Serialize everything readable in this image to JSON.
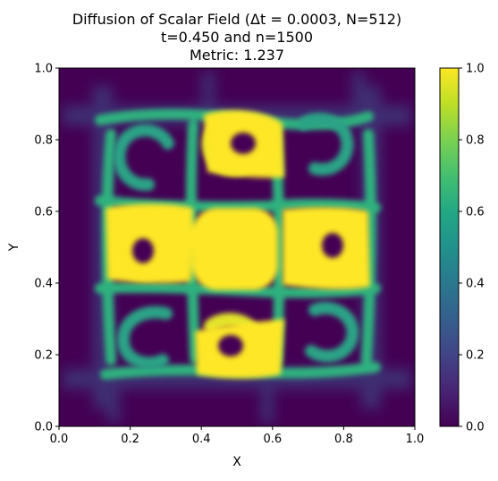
{
  "chart_data": {
    "type": "heatmap",
    "title": "Diffusion of Scalar Field (Δt = 0.0003, N=512)",
    "title_lines": [
      "Diffusion of Scalar Field (Δt = 0.0003, N=512)",
      "t=0.450 and n=1500",
      "Metric: 1.237"
    ],
    "xlabel": "X",
    "ylabel": "Y",
    "xlim": [
      0.0,
      1.0
    ],
    "ylim": [
      0.0,
      1.0
    ],
    "x_ticks": [
      0.0,
      0.2,
      0.4,
      0.6,
      0.8,
      1.0
    ],
    "y_ticks": [
      0.0,
      0.2,
      0.4,
      0.6,
      0.8,
      1.0
    ],
    "x_tick_labels": [
      "0.0",
      "0.2",
      "0.4",
      "0.6",
      "0.8",
      "1.0"
    ],
    "y_tick_labels": [
      "0.0",
      "0.2",
      "0.4",
      "0.6",
      "0.8",
      "1.0"
    ],
    "colormap": "viridis",
    "colorbar": {
      "range": [
        0.0,
        1.0
      ],
      "ticks": [
        0.0,
        0.2,
        0.4,
        0.6,
        0.8,
        1.0
      ],
      "tick_labels": [
        "0.0",
        "0.2",
        "0.4",
        "0.6",
        "0.8",
        "1.0"
      ]
    },
    "colors": {
      "low": "#440154",
      "mid": "#21918c",
      "high": "#fde725"
    },
    "features": [
      {
        "kind": "core",
        "x": 0.5,
        "y": 0.5,
        "value": 1.0
      },
      {
        "kind": "swirl",
        "x": 0.425,
        "y": 0.78,
        "value": 1.0
      },
      {
        "kind": "swirl",
        "x": 0.57,
        "y": 0.21,
        "value": 1.0
      },
      {
        "kind": "swirl",
        "x": 0.21,
        "y": 0.45,
        "value": 1.0
      },
      {
        "kind": "swirl",
        "x": 0.79,
        "y": 0.53,
        "value": 1.0
      },
      {
        "kind": "swirl",
        "x": 0.21,
        "y": 0.79,
        "value": 0.55
      },
      {
        "kind": "swirl",
        "x": 0.79,
        "y": 0.79,
        "value": 0.55
      },
      {
        "kind": "swirl",
        "x": 0.21,
        "y": 0.21,
        "value": 0.55
      },
      {
        "kind": "swirl",
        "x": 0.79,
        "y": 0.21,
        "value": 0.55
      }
    ]
  }
}
